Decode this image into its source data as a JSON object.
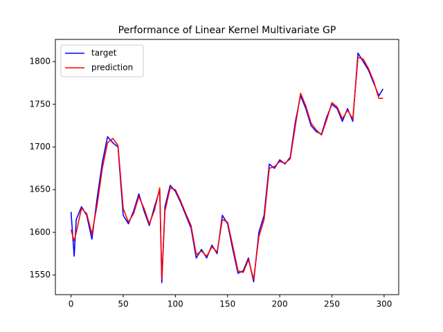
{
  "chart_data": {
    "type": "line",
    "title": "Performance of Linear Kernel Multivariate GP",
    "x": [
      0,
      3,
      5,
      10,
      15,
      20,
      25,
      30,
      35,
      40,
      45,
      50,
      55,
      60,
      65,
      70,
      75,
      80,
      85,
      87,
      90,
      95,
      100,
      105,
      110,
      115,
      120,
      125,
      130,
      135,
      140,
      145,
      150,
      155,
      160,
      165,
      170,
      175,
      180,
      185,
      190,
      195,
      200,
      205,
      210,
      215,
      220,
      225,
      230,
      235,
      240,
      245,
      250,
      255,
      260,
      265,
      270,
      275,
      280,
      285,
      290,
      295,
      299
    ],
    "series": [
      {
        "name": "target",
        "color": "#0000ff",
        "values": [
          1624,
          1572,
          1615,
          1630,
          1620,
          1592,
          1640,
          1682,
          1712,
          1705,
          1700,
          1620,
          1610,
          1625,
          1645,
          1625,
          1608,
          1630,
          1650,
          1541,
          1630,
          1655,
          1648,
          1635,
          1620,
          1605,
          1570,
          1580,
          1570,
          1585,
          1575,
          1620,
          1610,
          1580,
          1552,
          1555,
          1570,
          1542,
          1600,
          1620,
          1680,
          1675,
          1685,
          1680,
          1688,
          1730,
          1760,
          1745,
          1725,
          1718,
          1715,
          1735,
          1750,
          1745,
          1730,
          1745,
          1730,
          1810,
          1800,
          1790,
          1775,
          1760,
          1768
        ]
      },
      {
        "name": "prediction",
        "color": "#ff0000",
        "values": [
          1603,
          1590,
          1600,
          1628,
          1622,
          1598,
          1632,
          1675,
          1705,
          1710,
          1702,
          1628,
          1612,
          1622,
          1642,
          1628,
          1610,
          1626,
          1652,
          1545,
          1625,
          1652,
          1650,
          1637,
          1622,
          1608,
          1574,
          1578,
          1572,
          1583,
          1577,
          1615,
          1612,
          1584,
          1555,
          1553,
          1568,
          1545,
          1595,
          1615,
          1675,
          1677,
          1683,
          1681,
          1686,
          1725,
          1763,
          1748,
          1728,
          1720,
          1714,
          1732,
          1752,
          1747,
          1733,
          1743,
          1733,
          1805,
          1803,
          1792,
          1777,
          1757,
          1757
        ]
      }
    ],
    "xlim": [
      -15,
      314
    ],
    "xticks": [
      0,
      50,
      100,
      150,
      200,
      250,
      300
    ],
    "ylim": [
      1527,
      1826
    ],
    "yticks": [
      1550,
      1600,
      1650,
      1700,
      1750,
      1800
    ],
    "legend": "upper left"
  }
}
